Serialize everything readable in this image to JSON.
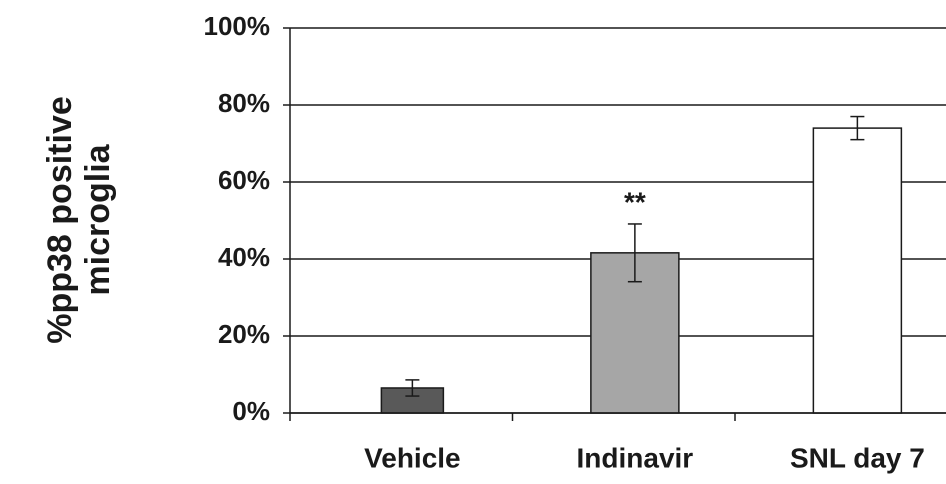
{
  "chart_data": {
    "type": "bar",
    "ylabel": [
      "%pp38 positive",
      "microglia"
    ],
    "categories": [
      "Vehicle",
      "Indinavir",
      "SNL day 7"
    ],
    "values": [
      6.5,
      41.6,
      74
    ],
    "errors": [
      2.1,
      7.5,
      3
    ],
    "colors": [
      "#595959",
      "#a6a6a6",
      "#ffffff"
    ],
    "annotations": [
      {
        "text": "**",
        "x": "Indinavir"
      }
    ],
    "ylim": [
      0,
      100
    ],
    "yticks": [
      {
        "value": 0,
        "label": "0%"
      },
      {
        "value": 20,
        "label": "20%"
      },
      {
        "value": 40,
        "label": "40%"
      },
      {
        "value": 60,
        "label": "60%"
      },
      {
        "value": 80,
        "label": "80%"
      },
      {
        "value": 100,
        "label": "100%"
      }
    ],
    "grid": true
  }
}
